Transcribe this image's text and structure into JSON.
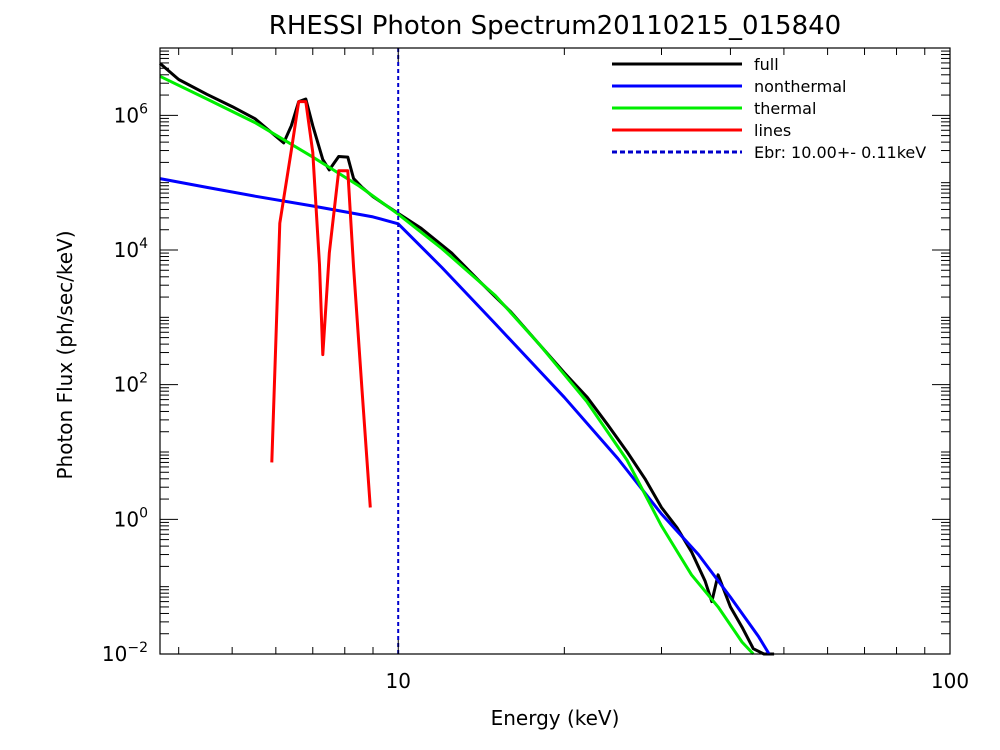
{
  "chart_data": {
    "type": "line",
    "title": "RHESSI Photon Spectrum20110215_015840",
    "xlabel": "Energy (keV)",
    "ylabel": "Photon Flux (ph/sec/keV)",
    "xscale": "log",
    "yscale": "log",
    "xlim": [
      3.7,
      100
    ],
    "ylim": [
      0.01,
      10000000
    ],
    "x_ticks": [
      {
        "value": 10,
        "label": "10"
      },
      {
        "value": 100,
        "label": "100"
      }
    ],
    "y_ticks": [
      {
        "value": 0.01,
        "base": "10",
        "exp": "−2"
      },
      {
        "value": 1,
        "base": "10",
        "exp": "0"
      },
      {
        "value": 100,
        "base": "10",
        "exp": "2"
      },
      {
        "value": 10000,
        "base": "10",
        "exp": "4"
      },
      {
        "value": 1000000,
        "base": "10",
        "exp": "6"
      }
    ],
    "legend_position": "top-right",
    "break_energy": 10.0,
    "series": [
      {
        "name": "full",
        "color": "#000000",
        "points": [
          [
            3.7,
            5900000.0
          ],
          [
            4.0,
            3400000.0
          ],
          [
            4.5,
            2050000.0
          ],
          [
            5.0,
            1350000.0
          ],
          [
            5.5,
            890000.0
          ],
          [
            6.0,
            490000.0
          ],
          [
            6.2,
            390000.0
          ],
          [
            6.4,
            700000.0
          ],
          [
            6.6,
            1600000.0
          ],
          [
            6.8,
            1750000.0
          ],
          [
            7.0,
            700000.0
          ],
          [
            7.3,
            220000.0
          ],
          [
            7.5,
            155000.0
          ],
          [
            7.8,
            245000.0
          ],
          [
            8.1,
            240000.0
          ],
          [
            8.3,
            115000.0
          ],
          [
            8.6,
            85000.0
          ],
          [
            9.0,
            62000.0
          ],
          [
            9.5,
            46000.0
          ],
          [
            10.0,
            35000.0
          ],
          [
            11.0,
            21000.0
          ],
          [
            12.5,
            9000.0
          ],
          [
            14.0,
            3500.0
          ],
          [
            16.0,
            1200.0
          ],
          [
            18.0,
            400
          ],
          [
            20.0,
            150
          ],
          [
            22.0,
            65
          ],
          [
            24.0,
            25
          ],
          [
            26.0,
            10
          ],
          [
            28.0,
            4
          ],
          [
            30.0,
            1.5
          ],
          [
            32.0,
            0.75
          ],
          [
            34.0,
            0.33
          ],
          [
            36.0,
            0.12
          ],
          [
            37.0,
            0.06
          ],
          [
            38.0,
            0.15
          ],
          [
            40.0,
            0.05
          ],
          [
            42.0,
            0.025
          ],
          [
            44.0,
            0.012
          ],
          [
            46.0,
            0.01
          ],
          [
            48.0,
            0.01
          ]
        ]
      },
      {
        "name": "nonthermal",
        "color": "#0000ff",
        "points": [
          [
            3.7,
            115000.0
          ],
          [
            4.5,
            85000.0
          ],
          [
            5.5,
            63000.0
          ],
          [
            7.0,
            45000.0
          ],
          [
            9.0,
            31000.0
          ],
          [
            10.0,
            24500.0
          ],
          [
            12.0,
            5500.0
          ],
          [
            15.0,
            800
          ],
          [
            20.0,
            65
          ],
          [
            25.0,
            8
          ],
          [
            30.0,
            1.2
          ],
          [
            35.0,
            0.3
          ],
          [
            40.0,
            0.07
          ],
          [
            45.0,
            0.018
          ],
          [
            47.0,
            0.01
          ]
        ]
      },
      {
        "name": "thermal",
        "color": "#00ee00",
        "points": [
          [
            3.7,
            3800000.0
          ],
          [
            4.5,
            1750000.0
          ],
          [
            5.5,
            780000.0
          ],
          [
            7.0,
            240000.0
          ],
          [
            8.5,
            89000.0
          ],
          [
            10.0,
            34000.0
          ],
          [
            12.0,
            10500.0
          ],
          [
            15.0,
            2100.0
          ],
          [
            18.0,
            400
          ],
          [
            22.0,
            55
          ],
          [
            26.0,
            7.5
          ],
          [
            30.0,
            0.8
          ],
          [
            34.0,
            0.15
          ],
          [
            38.0,
            0.05
          ],
          [
            42.0,
            0.015
          ],
          [
            44.0,
            0.01
          ]
        ]
      },
      {
        "name": "lines",
        "color": "#ff0000",
        "points": [
          [
            5.9,
            7
          ],
          [
            6.1,
            25000.0
          ],
          [
            6.4,
            300000.0
          ],
          [
            6.6,
            1600000.0
          ],
          [
            6.8,
            1600000.0
          ],
          [
            7.0,
            280000.0
          ],
          [
            7.2,
            6000.0
          ],
          [
            7.3,
            280
          ],
          [
            7.5,
            9000.0
          ],
          [
            7.8,
            150000.0
          ],
          [
            8.1,
            150000.0
          ],
          [
            8.3,
            5500.0
          ],
          [
            8.6,
            80
          ],
          [
            8.9,
            1.5
          ]
        ]
      },
      {
        "name": "Ebr: 10.00+-  0.11keV",
        "color": "#0000cc",
        "dashed": true,
        "points": [
          [
            10.0,
            0.01
          ],
          [
            10.0,
            10000000
          ]
        ]
      }
    ]
  }
}
